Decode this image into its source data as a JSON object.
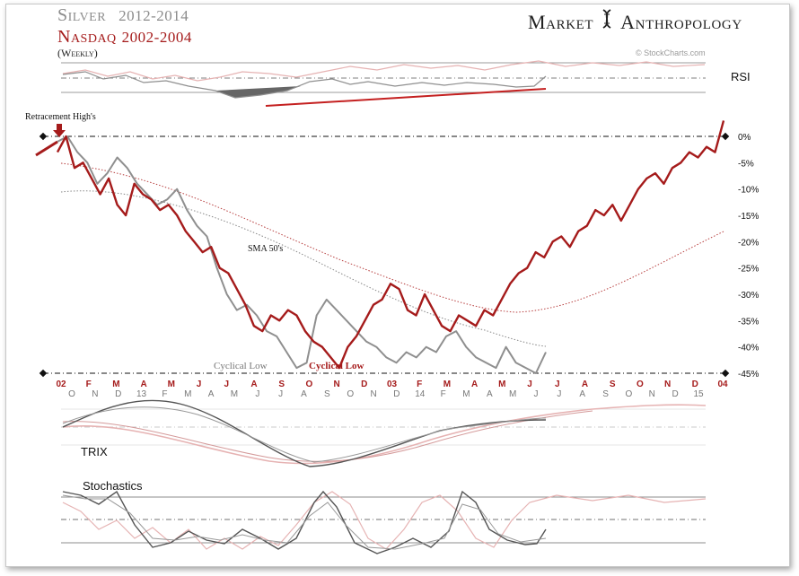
{
  "header": {
    "series1_name": "Silver",
    "series1_years": "2012-2014",
    "series2_name": "Nasdaq",
    "series2_years": "2002-2004",
    "frequency": "(Weekly)",
    "brand_left": "Market",
    "brand_right": "Anthropology",
    "credit": "© StockCharts.com"
  },
  "colors": {
    "silver": "#8f8f8f",
    "nasdaq": "#a51b1b",
    "silver_light": "#c9c9c9",
    "nasdaq_light": "#e6b3b3"
  },
  "annotations": {
    "retracement": "Retracement High's",
    "sma": "SMA 50's",
    "cyclical_low_silver": "Cyclical Low",
    "cyclical_low_nasdaq": "Cyclical Low"
  },
  "panels": {
    "rsi": "RSI",
    "trix": "TRIX",
    "stochastics": "Stochastics"
  },
  "chart_data": {
    "type": "line",
    "title": "Silver 2012-2014 / Nasdaq 2002-2004",
    "ylabel": "",
    "yticks": [
      "0%",
      "-5%",
      "-10%",
      "-15%",
      "-20%",
      "-25%",
      "-30%",
      "-35%",
      "-40%",
      "-45%"
    ],
    "ylim": [
      -45,
      0
    ],
    "x_nasdaq_labels": [
      "02",
      "F",
      "M",
      "A",
      "M",
      "J",
      "J",
      "A",
      "S",
      "O",
      "N",
      "D",
      "03",
      "F",
      "M",
      "A",
      "M",
      "J",
      "J",
      "A",
      "S",
      "O",
      "N",
      "D",
      "04"
    ],
    "x_silver_labels": [
      "O",
      "N",
      "D",
      "13",
      "F",
      "M",
      "A",
      "M",
      "J",
      "J",
      "A",
      "S",
      "O",
      "N",
      "D",
      "14",
      "F",
      "M",
      "A",
      "M",
      "J",
      "J",
      "A",
      "S",
      "O",
      "N",
      "D",
      "15"
    ],
    "series": [
      {
        "name": "Nasdaq 2002-2004",
        "color": "#a51b1b",
        "values": [
          -3,
          0,
          -6,
          -5,
          -8,
          -11,
          -8,
          -13,
          -15,
          -9,
          -11,
          -12,
          -14,
          -13,
          -15,
          -18,
          -20,
          -22,
          -21,
          -25,
          -26,
          -29,
          -32,
          -36,
          -37,
          -34,
          -35,
          -33,
          -34,
          -37,
          -39,
          -40,
          -42,
          -44,
          -40,
          -38,
          -35,
          -32,
          -31,
          -28,
          -29,
          -33,
          -34,
          -30,
          -33,
          -36,
          -37,
          -34,
          -35,
          -36,
          -33,
          -34,
          -31,
          -28,
          -26,
          -25,
          -22,
          -23,
          -20,
          -19,
          -21,
          -18,
          -17,
          -14,
          -15,
          -13,
          -16,
          -13,
          -10,
          -8,
          -7,
          -9,
          -6,
          -5,
          -3,
          -4,
          -2,
          -3,
          3
        ]
      },
      {
        "name": "Silver 2012-2014",
        "color": "#8f8f8f",
        "values": [
          -1,
          0,
          -3,
          -5,
          -9,
          -7,
          -4,
          -6,
          -9,
          -11,
          -13,
          -12,
          -10,
          -14,
          -17,
          -19,
          -25,
          -30,
          -33,
          -32,
          -34,
          -37,
          -38,
          -41,
          -44,
          -43,
          -34,
          -31,
          -33,
          -35,
          -37,
          -39,
          -40,
          -42,
          -43,
          -41,
          -42,
          -40,
          -41,
          -38,
          -37,
          -40,
          -42,
          -43,
          -44,
          -40,
          -43,
          -44,
          -45,
          -41
        ]
      }
    ],
    "sma_label": "SMA 50's",
    "rsi": {
      "label": "RSI"
    },
    "trix": {
      "label": "TRIX"
    },
    "stochastics": {
      "label": "Stochastics"
    }
  }
}
